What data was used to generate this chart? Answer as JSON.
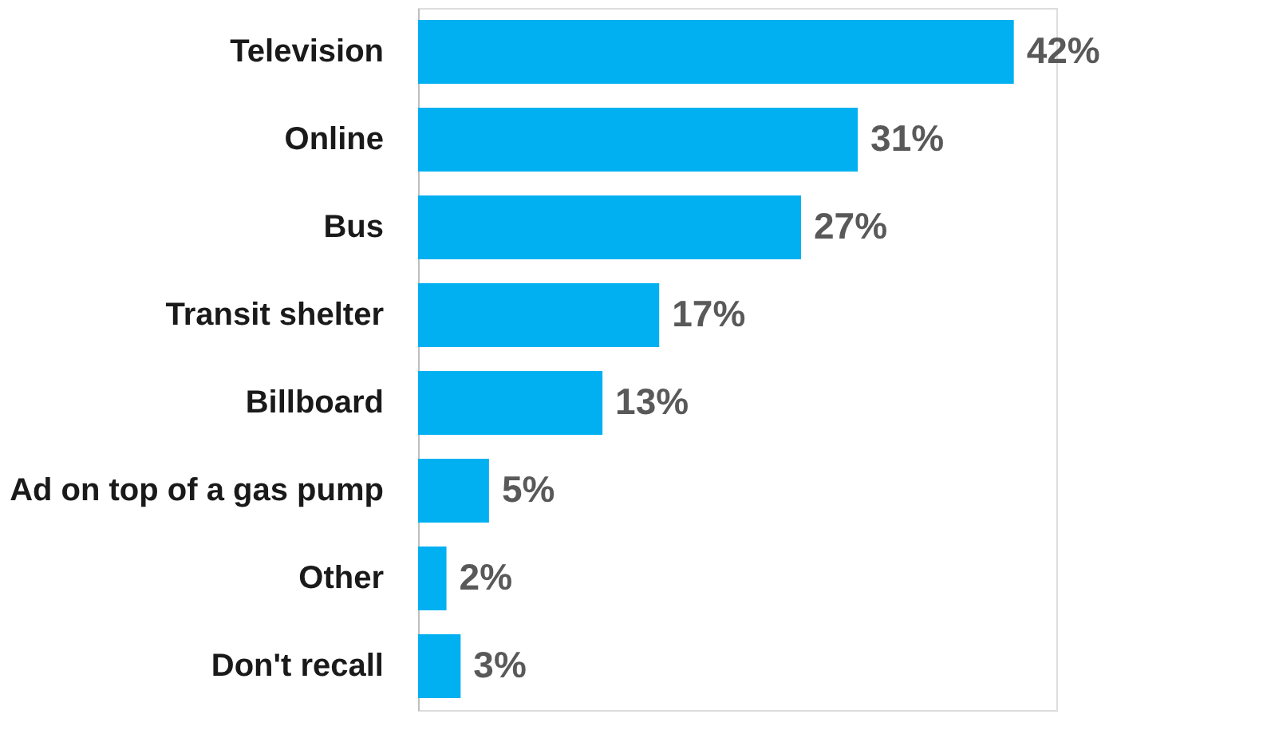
{
  "chart_data": {
    "type": "bar",
    "orientation": "horizontal",
    "categories": [
      "Television",
      "Online",
      "Bus",
      "Transit shelter",
      "Billboard",
      "Ad on top of a gas pump",
      "Other",
      "Don't recall"
    ],
    "values": [
      42,
      31,
      27,
      17,
      13,
      5,
      2,
      3
    ],
    "value_labels": [
      "42%",
      "31%",
      "27%",
      "17%",
      "13%",
      "5%",
      "2%",
      "3%"
    ],
    "color": "#00b0f0",
    "tick_labels": "y",
    "grid": false
  }
}
